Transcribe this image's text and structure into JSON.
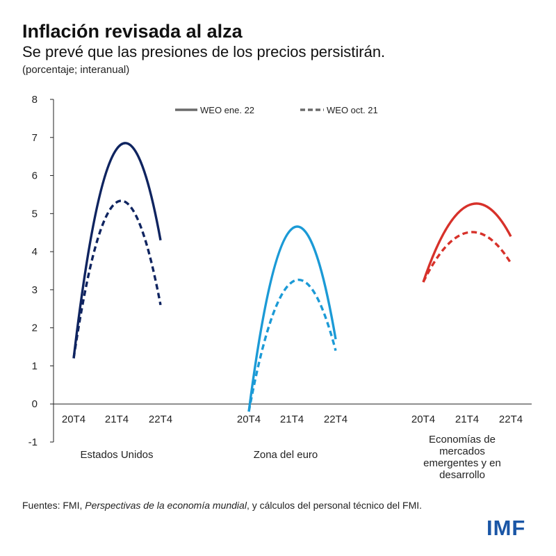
{
  "header": {
    "title": "Inflación revisada al alza",
    "subtitle": "Se prevé que las presiones de los precios persistirán.",
    "unit_note": "(porcentaje; interanual)"
  },
  "footer": {
    "source_prefix": "Fuentes: FMI, ",
    "source_italic": "Perspectivas de la economía mundial",
    "source_suffix": ", y cálculos del personal técnico del FMI.",
    "logo_text": "IMF"
  },
  "chart_data": {
    "type": "line",
    "title": "Inflación revisada al alza",
    "ylabel": "(porcentaje; interanual)",
    "ylim": [
      -1,
      8
    ],
    "yticks": [
      -1,
      0,
      1,
      2,
      3,
      4,
      5,
      6,
      7,
      8
    ],
    "grid": false,
    "legend_position": "top",
    "legend": [
      {
        "name": "WEO ene. 22",
        "style": "solid",
        "color": "#6b6b6b"
      },
      {
        "name": "WEO oct. 21",
        "style": "dashed",
        "color": "#6b6b6b"
      }
    ],
    "groups": [
      {
        "name": "Estados Unidos",
        "label_lines": [
          "Estados Unidos"
        ],
        "color": "#0f2460",
        "categories": [
          "20T4",
          "21T4",
          "22T4"
        ],
        "series": [
          {
            "name": "WEO ene. 22",
            "values": [
              1.2,
              6.7,
              4.3
            ]
          },
          {
            "name": "WEO oct. 21",
            "values": [
              1.2,
              5.3,
              2.6
            ]
          }
        ]
      },
      {
        "name": "Zona del euro",
        "label_lines": [
          "Zona del euro"
        ],
        "color": "#1b9ad6",
        "categories": [
          "20T4",
          "21T4",
          "22T4"
        ],
        "series": [
          {
            "name": "WEO ene. 22",
            "values": [
              -0.2,
              4.6,
              1.7
            ]
          },
          {
            "name": "WEO oct. 21",
            "values": [
              -0.2,
              3.2,
              1.4
            ]
          }
        ]
      },
      {
        "name": "Economías de mercados emergentes y en desarrollo",
        "label_lines": [
          "Economías de",
          "mercados",
          "emergentes y en",
          "desarrollo"
        ],
        "color": "#d7312a",
        "categories": [
          "20T4",
          "21T4",
          "22T4"
        ],
        "series": [
          {
            "name": "WEO ene. 22",
            "values": [
              3.2,
              5.2,
              4.4
            ]
          },
          {
            "name": "WEO oct. 21",
            "values": [
              3.2,
              4.5,
              3.7
            ]
          }
        ]
      }
    ]
  }
}
